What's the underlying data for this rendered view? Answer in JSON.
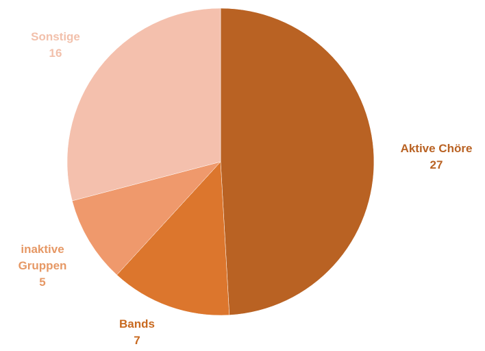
{
  "chart_data": {
    "type": "pie",
    "title": "",
    "slices": [
      {
        "name": "Aktive Chöre",
        "name_lines": [
          "Aktive Chöre"
        ],
        "value": 27,
        "color": "#b96223",
        "label_color": "#b96223"
      },
      {
        "name": "Bands",
        "name_lines": [
          "Bands"
        ],
        "value": 7,
        "color": "#dc762d",
        "label_color": "#c8691f"
      },
      {
        "name": "inaktive Gruppen",
        "name_lines": [
          "inaktive",
          "Gruppen"
        ],
        "value": 5,
        "color": "#ef996c",
        "label_color": "#e69865"
      },
      {
        "name": "Sonstige",
        "name_lines": [
          "Sonstige"
        ],
        "value": 16,
        "color": "#f4c0ad",
        "label_color": "#f2c0ab"
      }
    ],
    "start_angle_deg": 0,
    "direction": "clockwise",
    "legend": "none",
    "data_labels": "outside, category name and value"
  }
}
